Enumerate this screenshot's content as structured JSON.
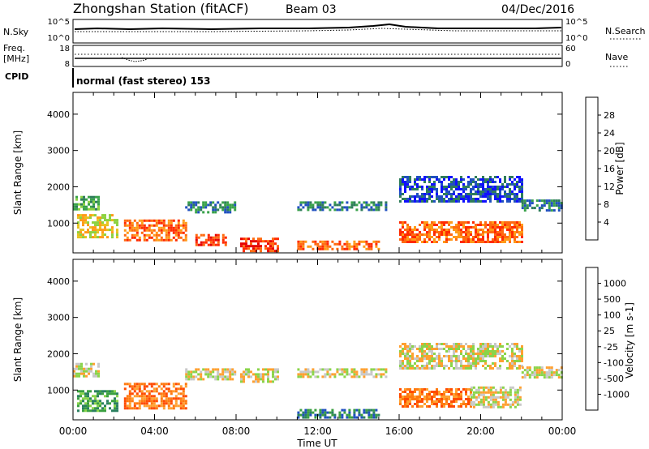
{
  "header": {
    "title": "Zhongshan Station (fitACF)",
    "beam": "Beam 03",
    "date": "04/Dec/2016"
  },
  "status_panels": {
    "nsky_label": "N.Sky",
    "nsky_ticks": [
      "10^5",
      "10^0"
    ],
    "nsearch_label": "N.Search",
    "nsearch_ticks": [
      "10^5",
      "10^0"
    ],
    "freq_label": "Freq.",
    "freq_unit": "[MHz]",
    "freq_ticks": [
      "18",
      "8"
    ],
    "nave_label": "Nave",
    "nave_ticks": [
      "60",
      "0"
    ],
    "cpid_label": "CPID",
    "cpid_text": "normal (fast stereo) 153"
  },
  "chart_data": [
    {
      "type": "heatmap",
      "name": "power-panel",
      "xlabel": "Time UT",
      "ylabel": "Slant Range [km]",
      "x_ticks": [
        "00:00",
        "04:00",
        "08:00",
        "12:00",
        "16:00",
        "20:00",
        "00:00"
      ],
      "x_range_hours": [
        0,
        24
      ],
      "ylim": [
        180,
        4600
      ],
      "y_ticks": [
        1000,
        2000,
        3000,
        4000
      ],
      "colorbar": {
        "label": "Power [dB]",
        "ticks": [
          "28",
          "24",
          "20",
          "16",
          "12",
          "8",
          "4"
        ],
        "colors": [
          "#1010ff",
          "#2050c0",
          "#2e7d5a",
          "#39a24a",
          "#8cd240",
          "#e6c21e",
          "#ff9a18",
          "#ff6a10",
          "#ff2a00",
          "#e60000"
        ]
      },
      "echo_regions": [
        {
          "t_start": 0.0,
          "t_end": 1.3,
          "r_start": 1380,
          "r_end": 1750,
          "level": 3
        },
        {
          "t_start": 0.2,
          "t_end": 2.2,
          "r_start": 600,
          "r_end": 1250,
          "level": 5
        },
        {
          "t_start": 2.5,
          "t_end": 5.6,
          "r_start": 500,
          "r_end": 1100,
          "level": 7
        },
        {
          "t_start": 5.5,
          "t_end": 8.0,
          "r_start": 1300,
          "r_end": 1600,
          "level": 2
        },
        {
          "t_start": 6.0,
          "t_end": 7.5,
          "r_start": 400,
          "r_end": 700,
          "level": 8
        },
        {
          "t_start": 8.2,
          "t_end": 10.0,
          "r_start": 200,
          "r_end": 600,
          "level": 8
        },
        {
          "t_start": 11.0,
          "t_end": 15.0,
          "r_start": 300,
          "r_end": 520,
          "level": 7
        },
        {
          "t_start": 11.0,
          "t_end": 15.4,
          "r_start": 1350,
          "r_end": 1600,
          "level": 2
        },
        {
          "t_start": 16.0,
          "t_end": 22.0,
          "r_start": 450,
          "r_end": 1050,
          "level": 7
        },
        {
          "t_start": 16.0,
          "t_end": 22.0,
          "r_start": 1600,
          "r_end": 2300,
          "level": 1
        },
        {
          "t_start": 22.0,
          "t_end": 24.0,
          "r_start": 1380,
          "r_end": 1650,
          "level": 2
        }
      ]
    },
    {
      "type": "heatmap",
      "name": "velocity-panel",
      "xlabel": "Time UT",
      "ylabel": "Slant Range [km]",
      "x_ticks": [
        "00:00",
        "04:00",
        "08:00",
        "12:00",
        "16:00",
        "20:00",
        "00:00"
      ],
      "x_range_hours": [
        0,
        24
      ],
      "ylim": [
        180,
        4600
      ],
      "y_ticks": [
        1000,
        2000,
        3000,
        4000
      ],
      "colorbar": {
        "label": "Velocity [m s-1]",
        "ticks": [
          "1000",
          "500",
          "100",
          "25",
          "-25",
          "-100",
          "-500",
          "-1000"
        ],
        "colors": [
          "#e60000",
          "#ff4a00",
          "#ff7a10",
          "#ffa030",
          "#c8c8c8",
          "#8ad44a",
          "#3aa040",
          "#2a8060",
          "#2050c0",
          "#1010ff"
        ]
      },
      "echo_regions": [
        {
          "t_start": 0.0,
          "t_end": 1.3,
          "r_start": 1380,
          "r_end": 1750,
          "level": 4
        },
        {
          "t_start": 0.2,
          "t_end": 2.2,
          "r_start": 400,
          "r_end": 1000,
          "level": 6
        },
        {
          "t_start": 2.5,
          "t_end": 5.6,
          "r_start": 500,
          "r_end": 1200,
          "level": 2
        },
        {
          "t_start": 5.5,
          "t_end": 8.0,
          "r_start": 1300,
          "r_end": 1600,
          "level": 4
        },
        {
          "t_start": 8.2,
          "t_end": 10.0,
          "r_start": 1200,
          "r_end": 1600,
          "level": 4
        },
        {
          "t_start": 11.0,
          "t_end": 15.0,
          "r_start": 250,
          "r_end": 480,
          "level": 7
        },
        {
          "t_start": 11.0,
          "t_end": 15.4,
          "r_start": 1350,
          "r_end": 1600,
          "level": 4
        },
        {
          "t_start": 16.0,
          "t_end": 19.5,
          "r_start": 550,
          "r_end": 1050,
          "level": 2
        },
        {
          "t_start": 19.5,
          "t_end": 22.0,
          "r_start": 500,
          "r_end": 1100,
          "level": 4
        },
        {
          "t_start": 16.0,
          "t_end": 22.0,
          "r_start": 1600,
          "r_end": 2300,
          "level": 4
        },
        {
          "t_start": 22.0,
          "t_end": 24.0,
          "r_start": 1380,
          "r_end": 1650,
          "level": 4
        }
      ]
    }
  ]
}
